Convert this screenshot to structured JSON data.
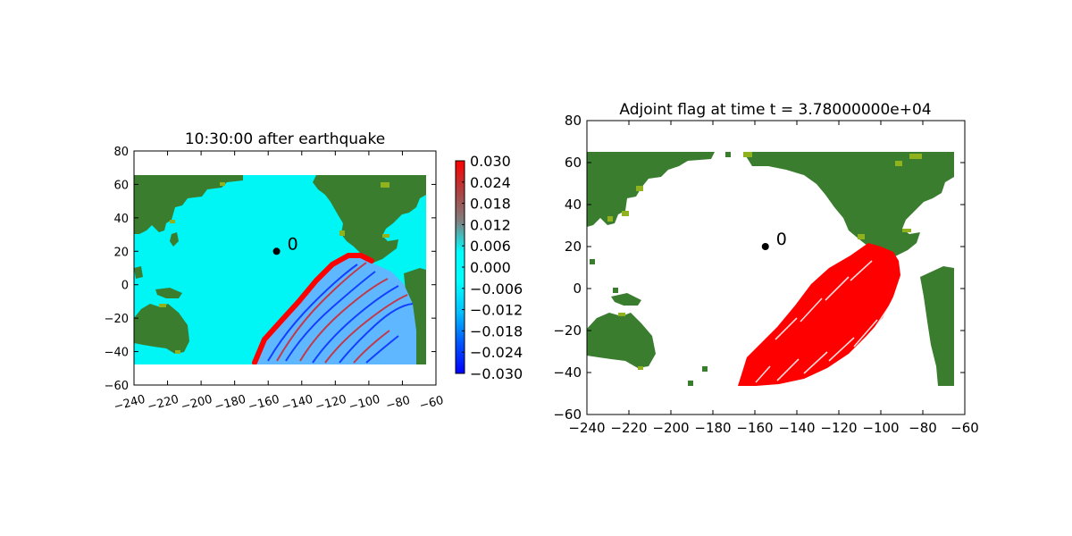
{
  "colors": {
    "land": "#3a7d2f",
    "shoreline": "#8fb21e",
    "ocean_left": "#00f5f5",
    "wave_red": "#ff0000",
    "wave_blue": "#0022ff",
    "white": "#ffffff"
  },
  "colorbar": {
    "ticks": [
      "0.030",
      "0.024",
      "0.018",
      "0.012",
      "0.006",
      "0.000",
      "−0.006",
      "−0.012",
      "−0.018",
      "−0.024",
      "−0.030"
    ],
    "min": -0.03,
    "max": 0.03,
    "stops": [
      "#0000ff",
      "#0055ff",
      "#00bfff",
      "#00ffff",
      "#00ffff",
      "#808080",
      "#b04040",
      "#ff0000"
    ]
  },
  "chart_data": [
    {
      "type": "heatmap",
      "title": "10:30:00 after earthquake",
      "xlim": [
        -240,
        -60
      ],
      "ylim": [
        -60,
        80
      ],
      "xticks": [
        "−240",
        "−220",
        "−200",
        "−180",
        "−160",
        "−140",
        "−120",
        "−100",
        "−80",
        "−60"
      ],
      "yticks": [
        "80",
        "60",
        "40",
        "20",
        "0",
        "−20",
        "−40",
        "−60"
      ],
      "xtick_values": [
        -240,
        -220,
        -200,
        -180,
        -160,
        -140,
        -120,
        -100,
        -80,
        -60
      ],
      "ytick_values": [
        80,
        60,
        40,
        20,
        0,
        -20,
        -40,
        -60
      ],
      "data_extent": {
        "x": [
          -240,
          -65
        ],
        "y": [
          -47,
          65
        ]
      },
      "marker": {
        "x": -155,
        "y": 20,
        "label": "0"
      },
      "colorbar_range": [
        -0.03,
        0.03
      ]
    },
    {
      "type": "heatmap",
      "title": "Adjoint flag at time t = 3.78000000e+04",
      "xlim": [
        -240,
        -60
      ],
      "ylim": [
        -60,
        80
      ],
      "xticks": [
        "−240",
        "−220",
        "−200",
        "−180",
        "−160",
        "−140",
        "−120",
        "−100",
        "−80",
        "−60"
      ],
      "yticks": [
        "80",
        "60",
        "40",
        "20",
        "0",
        "−20",
        "−40",
        "−60"
      ],
      "xtick_values": [
        -240,
        -220,
        -200,
        -180,
        -160,
        -140,
        -120,
        -100,
        -80,
        -60
      ],
      "ytick_values": [
        80,
        60,
        40,
        20,
        0,
        -20,
        -40,
        -60
      ],
      "data_extent": {
        "x": [
          -240,
          -65
        ],
        "y": [
          -47,
          65
        ]
      },
      "marker": {
        "x": -155,
        "y": 20,
        "label": "0"
      }
    }
  ]
}
